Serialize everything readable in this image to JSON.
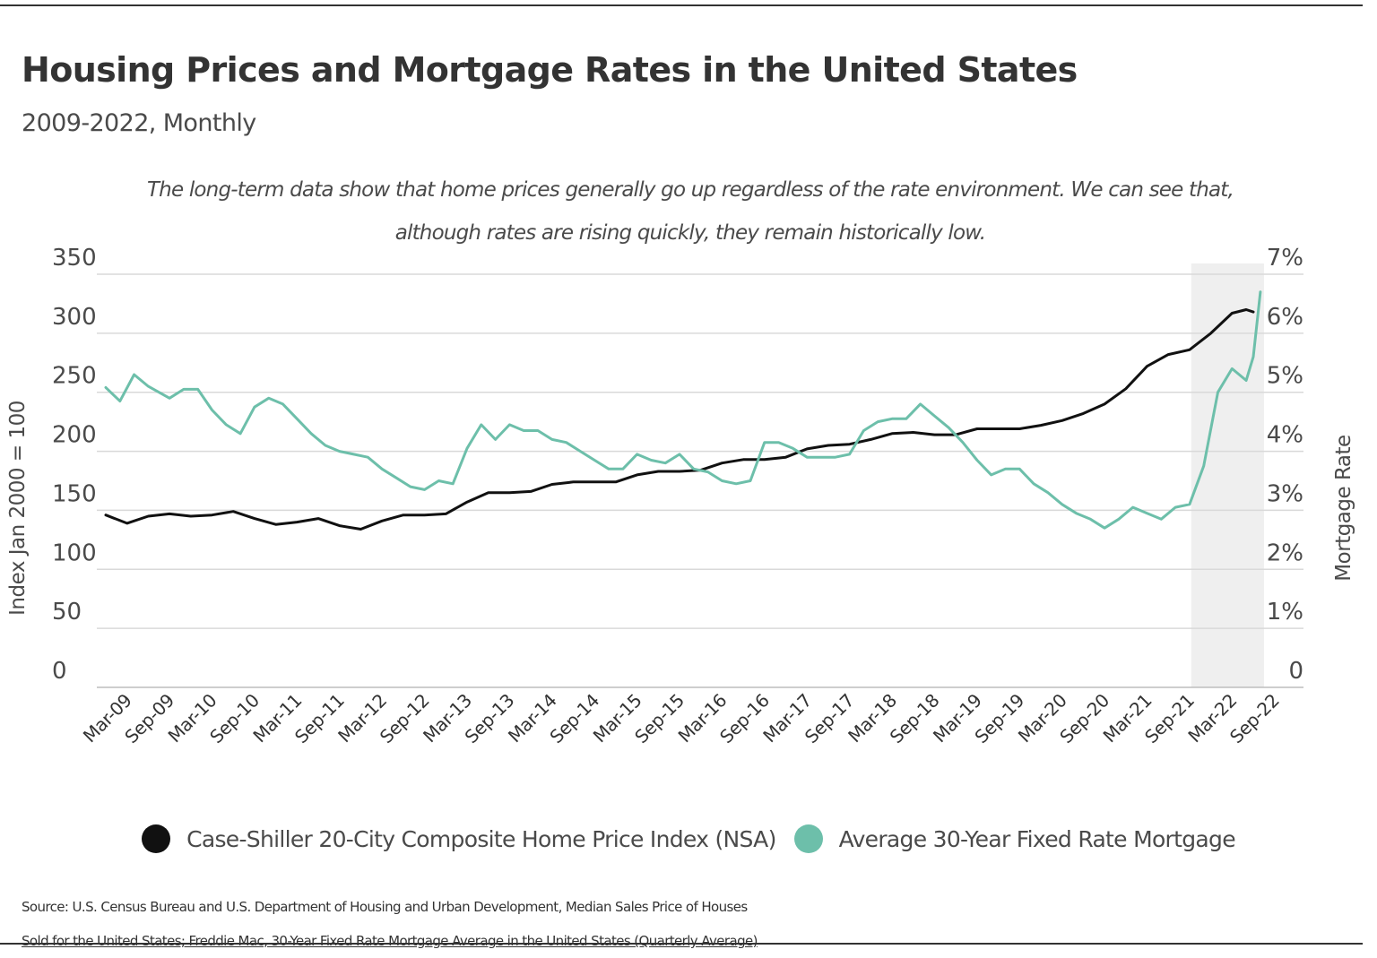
{
  "header": {
    "title": "Housing Prices and Mortgage Rates in the United States",
    "subtitle": "2009-2022, Monthly",
    "annotation_line1": "The long-term data show that home prices generally go up regardless of the rate environment. We can see that,",
    "annotation_line2": "although rates are rising quickly, they remain historically low."
  },
  "legend": {
    "items": [
      {
        "label": "Case-Shiller 20-City Composite Home Price Index (NSA)",
        "color": "#111111"
      },
      {
        "label": "Average 30-Year Fixed Rate Mortgage",
        "color": "#6dbfaa"
      }
    ]
  },
  "source": {
    "line1": "Source:  U.S. Census Bureau and U.S. Department of Housing and Urban Development, Median Sales Price of Houses",
    "line2": "Sold for the United States; Freddie Mac, 30-Year Fixed Rate Mortgage Average in the United States (Quarterly Average)"
  },
  "chart_data": {
    "type": "line",
    "x_tick_labels": [
      "Mar-09",
      "Sep-09",
      "Mar-10",
      "Sep-10",
      "Mar-11",
      "Sep-11",
      "Mar-12",
      "Sep-12",
      "Mar-13",
      "Sep-13",
      "Mar-14",
      "Sep-14",
      "Mar-15",
      "Sep-15",
      "Mar-16",
      "Sep-16",
      "Mar-17",
      "Sep-17",
      "Mar-18",
      "Sep-18",
      "Mar-19",
      "Sep-19",
      "Mar-20",
      "Sep-20",
      "Mar-21",
      "Sep-21",
      "Mar-22",
      "Sep-22"
    ],
    "y_left": {
      "label": "Index Jan 2000 = 100",
      "ticks": [
        "0",
        "50",
        "100",
        "150",
        "200",
        "250",
        "300",
        "350"
      ],
      "range": [
        0,
        350
      ]
    },
    "y_right": {
      "label": "Mortgage Rate",
      "ticks": [
        "0",
        "1%",
        "2%",
        "3%",
        "4%",
        "5%",
        "6%",
        "7%"
      ],
      "range": [
        0,
        7
      ]
    },
    "highlight": {
      "from": "Jan-22",
      "to": "Oct-22",
      "color": "#efefef"
    },
    "gridlines": true,
    "series": [
      {
        "name": "Case-Shiller 20-City Composite Home Price Index (NSA)",
        "axis": "left",
        "color": "#111111",
        "points": [
          [
            "Mar-09",
            146
          ],
          [
            "Jun-09",
            139
          ],
          [
            "Sep-09",
            145
          ],
          [
            "Dec-09",
            147
          ],
          [
            "Mar-10",
            145
          ],
          [
            "Jun-10",
            146
          ],
          [
            "Sep-10",
            149
          ],
          [
            "Dec-10",
            143
          ],
          [
            "Mar-11",
            138
          ],
          [
            "Jun-11",
            140
          ],
          [
            "Sep-11",
            143
          ],
          [
            "Dec-11",
            137
          ],
          [
            "Mar-12",
            134
          ],
          [
            "Jun-12",
            141
          ],
          [
            "Sep-12",
            146
          ],
          [
            "Dec-12",
            146
          ],
          [
            "Mar-13",
            147
          ],
          [
            "Jun-13",
            157
          ],
          [
            "Sep-13",
            165
          ],
          [
            "Dec-13",
            165
          ],
          [
            "Mar-14",
            166
          ],
          [
            "Jun-14",
            172
          ],
          [
            "Sep-14",
            174
          ],
          [
            "Dec-14",
            174
          ],
          [
            "Mar-15",
            174
          ],
          [
            "Jun-15",
            180
          ],
          [
            "Sep-15",
            183
          ],
          [
            "Dec-15",
            183
          ],
          [
            "Mar-16",
            184
          ],
          [
            "Jun-16",
            190
          ],
          [
            "Sep-16",
            193
          ],
          [
            "Dec-16",
            193
          ],
          [
            "Mar-17",
            195
          ],
          [
            "Jun-17",
            202
          ],
          [
            "Sep-17",
            205
          ],
          [
            "Dec-17",
            206
          ],
          [
            "Mar-18",
            210
          ],
          [
            "Jun-18",
            215
          ],
          [
            "Sep-18",
            216
          ],
          [
            "Dec-18",
            214
          ],
          [
            "Mar-19",
            214
          ],
          [
            "Jun-19",
            219
          ],
          [
            "Sep-19",
            219
          ],
          [
            "Dec-19",
            219
          ],
          [
            "Mar-20",
            222
          ],
          [
            "Jun-20",
            226
          ],
          [
            "Sep-20",
            232
          ],
          [
            "Dec-20",
            240
          ],
          [
            "Mar-21",
            253
          ],
          [
            "Jun-21",
            272
          ],
          [
            "Sep-21",
            282
          ],
          [
            "Dec-21",
            286
          ],
          [
            "Mar-22",
            300
          ],
          [
            "Jun-22",
            317
          ],
          [
            "Aug-22",
            320
          ],
          [
            "Sep-22",
            318
          ]
        ]
      },
      {
        "name": "Average 30-Year Fixed Rate Mortgage",
        "axis": "right",
        "color": "#6dbfaa",
        "points": [
          [
            "Mar-09",
            5.08
          ],
          [
            "May-09",
            4.85
          ],
          [
            "Jul-09",
            5.3
          ],
          [
            "Sep-09",
            5.1
          ],
          [
            "Dec-09",
            4.9
          ],
          [
            "Feb-10",
            5.05
          ],
          [
            "Apr-10",
            5.05
          ],
          [
            "Jun-10",
            4.7
          ],
          [
            "Aug-10",
            4.45
          ],
          [
            "Oct-10",
            4.3
          ],
          [
            "Dec-10",
            4.75
          ],
          [
            "Feb-11",
            4.9
          ],
          [
            "Apr-11",
            4.8
          ],
          [
            "Jun-11",
            4.55
          ],
          [
            "Aug-11",
            4.3
          ],
          [
            "Oct-11",
            4.1
          ],
          [
            "Dec-11",
            4.0
          ],
          [
            "Feb-12",
            3.95
          ],
          [
            "Apr-12",
            3.9
          ],
          [
            "Jun-12",
            3.7
          ],
          [
            "Aug-12",
            3.55
          ],
          [
            "Oct-12",
            3.4
          ],
          [
            "Dec-12",
            3.35
          ],
          [
            "Feb-13",
            3.5
          ],
          [
            "Apr-13",
            3.45
          ],
          [
            "Jun-13",
            4.05
          ],
          [
            "Aug-13",
            4.45
          ],
          [
            "Oct-13",
            4.2
          ],
          [
            "Dec-13",
            4.45
          ],
          [
            "Feb-14",
            4.35
          ],
          [
            "Apr-14",
            4.35
          ],
          [
            "Jun-14",
            4.2
          ],
          [
            "Aug-14",
            4.15
          ],
          [
            "Oct-14",
            4.0
          ],
          [
            "Dec-14",
            3.85
          ],
          [
            "Feb-15",
            3.7
          ],
          [
            "Apr-15",
            3.7
          ],
          [
            "Jun-15",
            3.95
          ],
          [
            "Aug-15",
            3.85
          ],
          [
            "Oct-15",
            3.8
          ],
          [
            "Dec-15",
            3.95
          ],
          [
            "Feb-16",
            3.7
          ],
          [
            "Apr-16",
            3.65
          ],
          [
            "Jun-16",
            3.5
          ],
          [
            "Aug-16",
            3.45
          ],
          [
            "Oct-16",
            3.5
          ],
          [
            "Dec-16",
            4.15
          ],
          [
            "Feb-17",
            4.15
          ],
          [
            "Apr-17",
            4.05
          ],
          [
            "Jun-17",
            3.9
          ],
          [
            "Aug-17",
            3.9
          ],
          [
            "Oct-17",
            3.9
          ],
          [
            "Dec-17",
            3.95
          ],
          [
            "Feb-18",
            4.35
          ],
          [
            "Apr-18",
            4.5
          ],
          [
            "Jun-18",
            4.55
          ],
          [
            "Aug-18",
            4.55
          ],
          [
            "Oct-18",
            4.8
          ],
          [
            "Dec-18",
            4.6
          ],
          [
            "Feb-19",
            4.4
          ],
          [
            "Apr-19",
            4.15
          ],
          [
            "Jun-19",
            3.85
          ],
          [
            "Aug-19",
            3.6
          ],
          [
            "Oct-19",
            3.7
          ],
          [
            "Dec-19",
            3.7
          ],
          [
            "Feb-20",
            3.45
          ],
          [
            "Apr-20",
            3.3
          ],
          [
            "Jun-20",
            3.1
          ],
          [
            "Aug-20",
            2.95
          ],
          [
            "Oct-20",
            2.85
          ],
          [
            "Dec-20",
            2.7
          ],
          [
            "Feb-21",
            2.85
          ],
          [
            "Apr-21",
            3.05
          ],
          [
            "Jun-21",
            2.95
          ],
          [
            "Aug-21",
            2.85
          ],
          [
            "Oct-21",
            3.05
          ],
          [
            "Dec-21",
            3.1
          ],
          [
            "Feb-22",
            3.75
          ],
          [
            "Apr-22",
            5.0
          ],
          [
            "Jun-22",
            5.4
          ],
          [
            "Aug-22",
            5.2
          ],
          [
            "Sep-22",
            5.6
          ],
          [
            "Oct-22",
            6.7
          ]
        ]
      }
    ]
  }
}
